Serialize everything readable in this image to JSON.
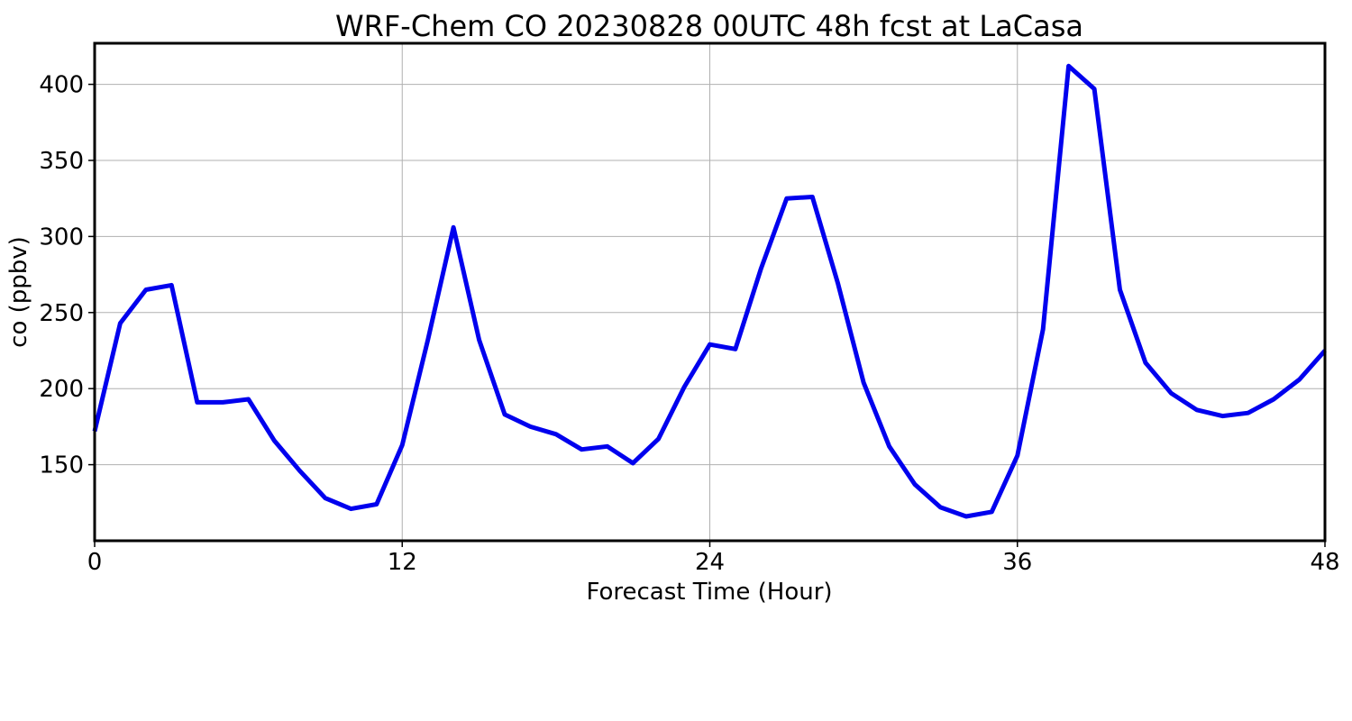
{
  "chart_data": {
    "type": "line",
    "title": "WRF-Chem CO  20230828 00UTC 48h fcst at LaCasa",
    "xlabel": "Forecast Time (Hour)",
    "ylabel": "co  (ppbv)",
    "xlim": [
      0,
      48
    ],
    "ylim": [
      100,
      427
    ],
    "x_ticks": [
      0,
      12,
      24,
      36,
      48
    ],
    "y_ticks": [
      150,
      200,
      250,
      300,
      350,
      400
    ],
    "grid": true,
    "line_color": "#0000ee",
    "series": [
      {
        "x": [
          0,
          1,
          2,
          3,
          4,
          5,
          6,
          7,
          8,
          9,
          10,
          11,
          12,
          13,
          14,
          15,
          16,
          17,
          18,
          19,
          20,
          21,
          22,
          23,
          24,
          25,
          26,
          27,
          28,
          29,
          30,
          31,
          32,
          33,
          34,
          35,
          36,
          37,
          38,
          39,
          40,
          41,
          42,
          43,
          44,
          45,
          46,
          47,
          48
        ],
        "values": [
          172,
          243,
          265,
          268,
          191,
          191,
          193,
          166,
          146,
          128,
          121,
          124,
          163,
          232,
          306,
          232,
          183,
          175,
          170,
          160,
          162,
          151,
          167,
          201,
          229,
          226,
          279,
          325,
          326,
          269,
          204,
          162,
          137,
          122,
          116,
          119,
          156,
          239,
          412,
          397,
          265,
          217,
          197,
          186,
          182,
          184,
          193,
          206,
          225
        ]
      }
    ]
  }
}
